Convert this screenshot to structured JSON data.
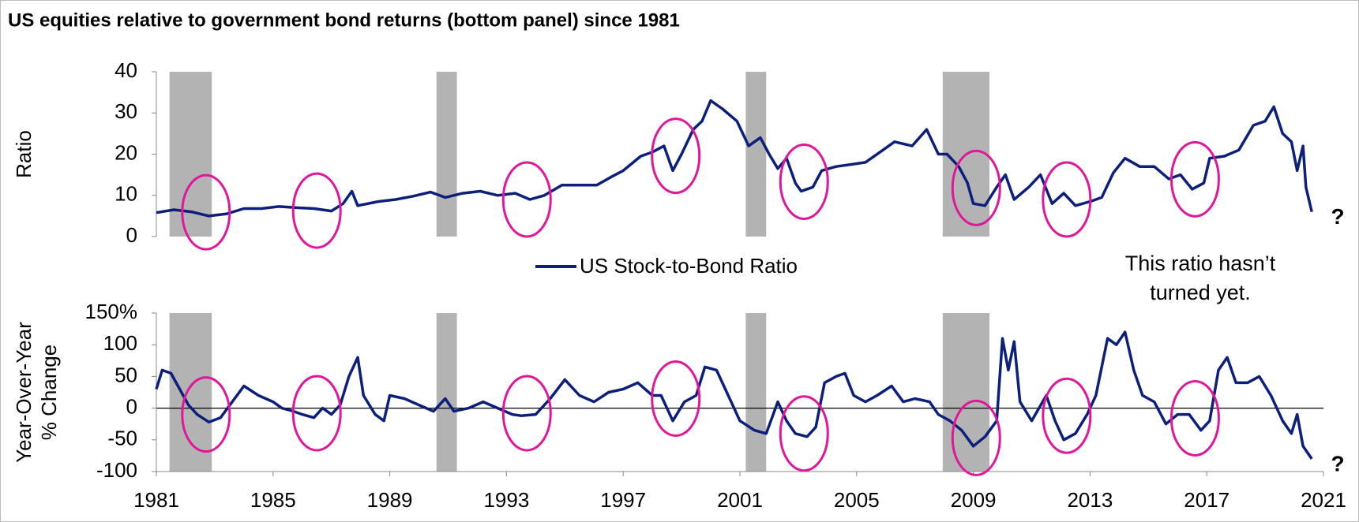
{
  "title": "US equities relative to government bond returns (bottom panel) since 1981",
  "shading": [
    [
      1981.45,
      1982.9
    ],
    [
      1990.6,
      1991.3
    ],
    [
      2001.2,
      2001.9
    ],
    [
      2007.95,
      2009.55
    ]
  ],
  "chart_data": [
    {
      "type": "line",
      "ylabel": "Ratio",
      "xlim": [
        1981,
        2021
      ],
      "ylim": [
        0,
        40
      ],
      "yticks": [
        0,
        10,
        20,
        30,
        40
      ],
      "x": [
        1981.0,
        1981.6,
        1982.2,
        1982.8,
        1983.4,
        1984.0,
        1984.6,
        1985.2,
        1985.8,
        1986.4,
        1987.0,
        1987.4,
        1987.7,
        1987.9,
        1988.6,
        1989.2,
        1989.8,
        1990.4,
        1990.9,
        1991.5,
        1992.1,
        1992.7,
        1993.3,
        1993.8,
        1994.3,
        1994.9,
        1995.5,
        1996.1,
        1996.6,
        1997.0,
        1997.6,
        1998.0,
        1998.4,
        1998.7,
        1999.0,
        1999.4,
        1999.7,
        2000.0,
        2000.4,
        2000.9,
        2001.3,
        2001.7,
        2002.0,
        2002.3,
        2002.6,
        2002.9,
        2003.1,
        2003.5,
        2003.8,
        2004.3,
        2004.8,
        2005.3,
        2005.8,
        2006.3,
        2006.9,
        2007.4,
        2007.8,
        2008.1,
        2008.5,
        2008.8,
        2009.0,
        2009.4,
        2009.8,
        2010.1,
        2010.4,
        2010.9,
        2011.3,
        2011.7,
        2012.1,
        2012.5,
        2013.0,
        2013.4,
        2013.8,
        2014.2,
        2014.7,
        2015.2,
        2015.7,
        2016.1,
        2016.5,
        2016.9,
        2017.1,
        2017.6,
        2018.1,
        2018.6,
        2019.0,
        2019.3,
        2019.6,
        2019.9,
        2020.1,
        2020.3,
        2020.4,
        2020.6
      ],
      "series": [
        {
          "name": "US Stock-to-Bond Ratio",
          "color": "#0c1f7a",
          "values": [
            5.8,
            6.5,
            6.0,
            5.0,
            5.5,
            6.8,
            6.8,
            7.3,
            7.0,
            6.8,
            6.2,
            8.0,
            11,
            7.5,
            8.5,
            9.0,
            9.8,
            10.8,
            9.5,
            10.5,
            11.0,
            10.0,
            10.5,
            9.0,
            10.0,
            12.5,
            12.5,
            12.5,
            14.5,
            16,
            19.5,
            20.5,
            22,
            16,
            20,
            26,
            28,
            33,
            31,
            28,
            22,
            24,
            20,
            16.5,
            19,
            13,
            11,
            12,
            16,
            17,
            17.5,
            18,
            20.5,
            23,
            22,
            26,
            20,
            20,
            17,
            13,
            8,
            7.5,
            12,
            15,
            9,
            12,
            15,
            8,
            10.5,
            7.5,
            8.5,
            9.5,
            15.5,
            19,
            17,
            17,
            14,
            15,
            11.5,
            13,
            19,
            19.5,
            21,
            27,
            28,
            31.5,
            25,
            23,
            16,
            22,
            12,
            6
          ]
        }
      ],
      "highlights": [
        {
          "x": 1982.7,
          "y": 5.9
        },
        {
          "x": 1986.5,
          "y": 6.3
        },
        {
          "x": 1993.7,
          "y": 9
        },
        {
          "x": 1998.8,
          "y": 19.6
        },
        {
          "x": 2003.2,
          "y": 13.3
        },
        {
          "x": 2009.1,
          "y": 11.8
        },
        {
          "x": 2012.2,
          "y": 9
        },
        {
          "x": 2016.6,
          "y": 13.9
        }
      ],
      "annotation": [
        "This ratio hasn’t",
        "turned yet."
      ],
      "marker": "?"
    },
    {
      "type": "line",
      "ylabel": [
        "Year-Over-Year",
        "% Change"
      ],
      "xlim": [
        1981,
        2021
      ],
      "ylim": [
        -100,
        150
      ],
      "yticks": [
        {
          "value": 150,
          "label": "150%"
        },
        100,
        50,
        0,
        -50,
        -100
      ],
      "xticks": [
        1981,
        1985,
        1989,
        1993,
        1997,
        2001,
        2005,
        2009,
        2013,
        2017,
        2021
      ],
      "x": [
        1981.0,
        1981.2,
        1981.5,
        1981.8,
        1982.1,
        1982.4,
        1982.8,
        1983.2,
        1983.6,
        1984.0,
        1984.5,
        1985.0,
        1985.3,
        1985.7,
        1986.0,
        1986.4,
        1986.7,
        1987.0,
        1987.3,
        1987.6,
        1987.9,
        1988.1,
        1988.5,
        1988.8,
        1989.0,
        1989.5,
        1990.0,
        1990.5,
        1990.9,
        1991.2,
        1991.7,
        1992.2,
        1992.7,
        1993.2,
        1993.5,
        1994.0,
        1994.5,
        1995.0,
        1995.5,
        1996.0,
        1996.5,
        1997.0,
        1997.5,
        1998.0,
        1998.3,
        1998.7,
        1999.1,
        1999.5,
        1999.8,
        2000.2,
        2000.6,
        2001.0,
        2001.5,
        2001.9,
        2002.3,
        2002.6,
        2002.9,
        2003.3,
        2003.6,
        2003.9,
        2004.3,
        2004.6,
        2004.9,
        2005.3,
        2005.7,
        2006.2,
        2006.6,
        2007.0,
        2007.5,
        2007.8,
        2008.2,
        2008.6,
        2009.0,
        2009.4,
        2009.8,
        2010.0,
        2010.2,
        2010.4,
        2010.6,
        2011.0,
        2011.5,
        2011.8,
        2012.1,
        2012.5,
        2012.9,
        2013.2,
        2013.6,
        2013.9,
        2014.2,
        2014.5,
        2014.8,
        2015.2,
        2015.6,
        2016.0,
        2016.4,
        2016.8,
        2017.1,
        2017.4,
        2017.7,
        2018.0,
        2018.4,
        2018.8,
        2019.2,
        2019.6,
        2019.9,
        2020.1,
        2020.3,
        2020.6
      ],
      "series": [
        {
          "name": "Year-Over-Year % Change",
          "color": "#0c1f7a",
          "values": [
            30,
            60,
            55,
            30,
            5,
            -10,
            -22,
            -15,
            10,
            35,
            20,
            10,
            0,
            -5,
            -10,
            -15,
            0,
            -10,
            5,
            50,
            80,
            20,
            -10,
            -20,
            20,
            15,
            5,
            -5,
            15,
            -5,
            0,
            10,
            0,
            -10,
            -12,
            -10,
            15,
            45,
            20,
            10,
            25,
            30,
            40,
            20,
            20,
            -20,
            10,
            20,
            65,
            60,
            20,
            -20,
            -35,
            -40,
            10,
            -20,
            -40,
            -45,
            -30,
            40,
            50,
            55,
            20,
            10,
            20,
            35,
            10,
            15,
            10,
            -10,
            -20,
            -35,
            -60,
            -45,
            -20,
            110,
            60,
            105,
            10,
            -20,
            20,
            -20,
            -50,
            -40,
            -10,
            20,
            110,
            100,
            120,
            60,
            20,
            10,
            -25,
            -10,
            -10,
            -35,
            -20,
            60,
            80,
            40,
            40,
            50,
            20,
            -20,
            -40,
            -10,
            -60,
            -80
          ]
        }
      ],
      "highlights": [
        {
          "x": 1982.7,
          "y": -10
        },
        {
          "x": 1986.5,
          "y": -8
        },
        {
          "x": 1993.7,
          "y": -8
        },
        {
          "x": 1998.8,
          "y": 15
        },
        {
          "x": 2003.2,
          "y": -40
        },
        {
          "x": 2009.1,
          "y": -47
        },
        {
          "x": 2012.2,
          "y": -12
        },
        {
          "x": 2016.6,
          "y": -16
        }
      ],
      "marker": "?"
    }
  ]
}
